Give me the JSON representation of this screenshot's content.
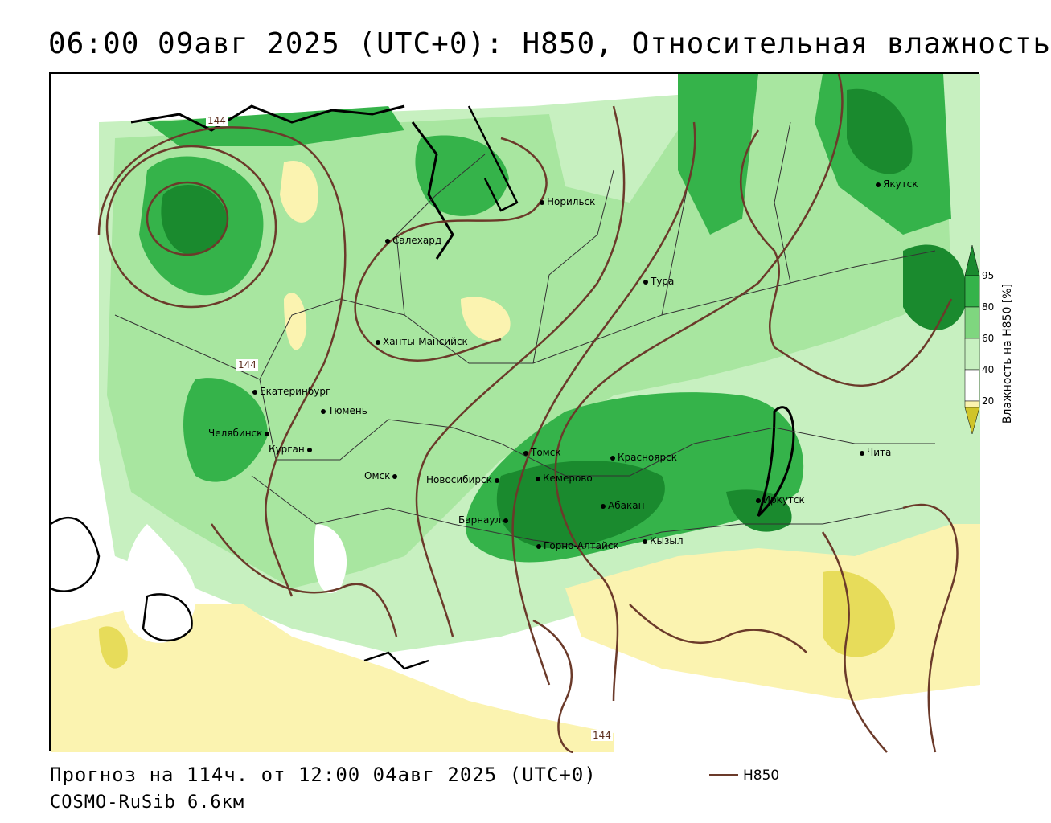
{
  "title": "06:00 09авг 2025 (UTC+0): H850, Относительная влажность",
  "footer": {
    "forecast": "Прогноз на 114ч. от 12:00 04авг 2025 (UTC+0)",
    "model": "COSMO-RuSib 6.6км",
    "legend_label": "H850"
  },
  "colorbar": {
    "title": "Влажность на H850 [%]",
    "ticks": [
      "95",
      "80",
      "60",
      "40",
      "20"
    ],
    "colors": [
      "#1a8a2e",
      "#35b34a",
      "#7fd67f",
      "#c7f0c0",
      "#ffffff",
      "#fbf3b0",
      "#e7dc5a",
      "#cfc42a"
    ]
  },
  "contour_labels": [
    "144",
    "144",
    "144"
  ],
  "cities": [
    "Якутск",
    "Норильск",
    "Салехард",
    "Тура",
    "Ханты-Мансийск",
    "Екатеринбург",
    "Тюмень",
    "Челябинск",
    "Курган",
    "Омск",
    "Новосибирск",
    "Томск",
    "Красноярск",
    "Кемерово",
    "Абакан",
    "Барнаул",
    "Горно-Алтайск",
    "Кызыл",
    "Иркутск",
    "Чита"
  ],
  "colors": {
    "contour": "#6b3a2a",
    "green_dark": "#1a8a2e",
    "green": "#35b34a",
    "green_light": "#a8e6a0",
    "yellow": "#fbf3b0",
    "yellow_dark": "#e7dc5a"
  }
}
